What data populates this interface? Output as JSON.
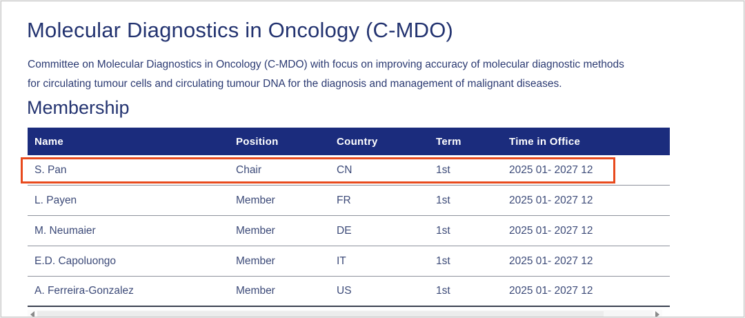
{
  "page": {
    "title": "Molecular Diagnostics in Oncology (C-MDO)",
    "description": "Committee on Molecular Diagnostics in Oncology (C-MDO) with focus on improving accuracy of molecular diagnostic methods for circulating tumour cells and circulating tumour DNA for the diagnosis and management of malignant diseases.",
    "section_heading": "Membership"
  },
  "table": {
    "columns": [
      "Name",
      "Position",
      "Country",
      "Term",
      "Time in Office"
    ],
    "rows": [
      {
        "name": "S. Pan",
        "position": "Chair",
        "country": "CN",
        "term": "1st",
        "time_in_office": "2025 01- 2027 12",
        "highlighted": true
      },
      {
        "name": "L. Payen",
        "position": "Member",
        "country": "FR",
        "term": "1st",
        "time_in_office": "2025 01- 2027 12",
        "highlighted": false
      },
      {
        "name": "M. Neumaier",
        "position": "Member",
        "country": "DE",
        "term": "1st",
        "time_in_office": "2025 01- 2027 12",
        "highlighted": false
      },
      {
        "name": "E.D. Capoluongo",
        "position": "Member",
        "country": "IT",
        "term": "1st",
        "time_in_office": "2025 01- 2027 12",
        "highlighted": false
      },
      {
        "name": "A. Ferreira-Gonzalez",
        "position": "Member",
        "country": "US",
        "term": "1st",
        "time_in_office": "2025 01- 2027 12",
        "highlighted": false
      }
    ]
  },
  "colors": {
    "header_bg": "#1b2c7d",
    "heading_text": "#233370",
    "body_text": "#2b3a72",
    "cell_text": "#3c4a78",
    "row_separator": "#8d919c",
    "table_bottom_border": "#394050",
    "highlight_border": "#e84a1d",
    "page_border": "#c6c6c6"
  }
}
